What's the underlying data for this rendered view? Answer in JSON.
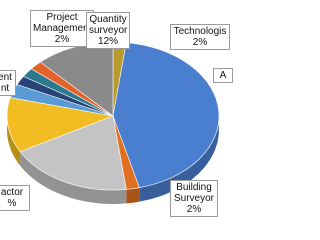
{
  "chart_data": {
    "type": "pie3d",
    "categories": [
      "Technologis",
      "A",
      "Building\nSurveyor",
      null,
      "actor",
      "ent\nnt",
      null,
      null,
      "Project\nManagement",
      "Quantity\nsurveyor"
    ],
    "values": [
      2,
      44,
      2,
      19,
      12,
      3,
      2,
      2,
      2,
      12
    ],
    "value_labels": [
      "2%",
      null,
      "2%",
      null,
      "%",
      null,
      null,
      null,
      "2%",
      "12%"
    ],
    "colors": [
      "#b89a2e",
      "#4a7fd0",
      "#e07020",
      "#c4c4c4",
      "#f2bd22",
      "#5b9bd5",
      "#264478",
      "#2e7a8c",
      "#e2622a",
      "#8a8a8a"
    ]
  }
}
